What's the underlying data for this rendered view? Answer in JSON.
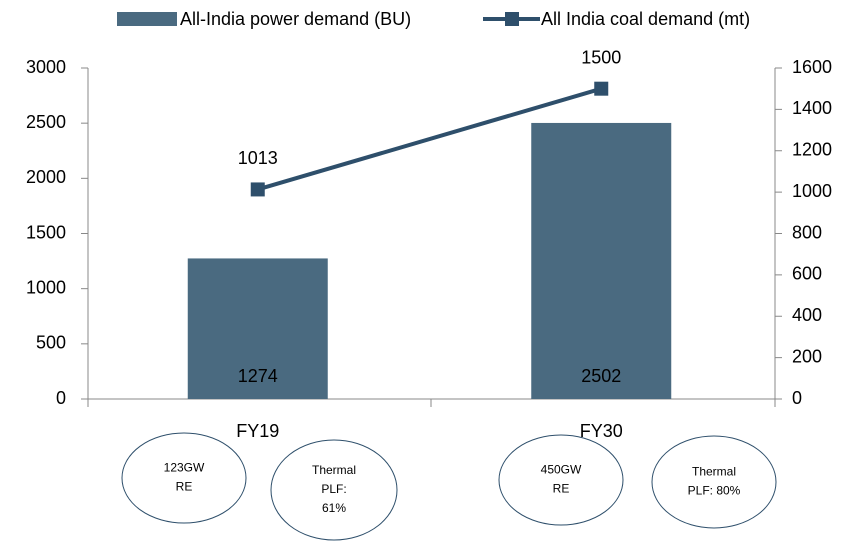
{
  "chart_data": {
    "type": "bar_line",
    "categories": [
      "FY19",
      "FY30"
    ],
    "series": [
      {
        "name": "All-India power demand (BU)",
        "type": "bar",
        "color": "#4a6a80",
        "values": [
          1274,
          2502
        ]
      },
      {
        "name": "All India coal demand (mt)",
        "type": "line",
        "axis": "y2",
        "color": "#2e4f6b",
        "values": [
          1013,
          1500
        ]
      }
    ],
    "ylim": [
      0,
      3000
    ],
    "yticks": [
      0,
      500,
      1000,
      1500,
      2000,
      2500,
      3000
    ],
    "y2lim": [
      0,
      1600
    ],
    "y2ticks": [
      0,
      200,
      400,
      600,
      800,
      1000,
      1200,
      1400,
      1600
    ],
    "grid": false,
    "legend": "top",
    "annotations": [
      [
        "123GW",
        "RE"
      ],
      [
        "Thermal",
        "PLF:",
        "61%"
      ],
      [
        "450GW",
        "RE"
      ],
      [
        "Thermal",
        "PLF: 80%"
      ]
    ]
  }
}
